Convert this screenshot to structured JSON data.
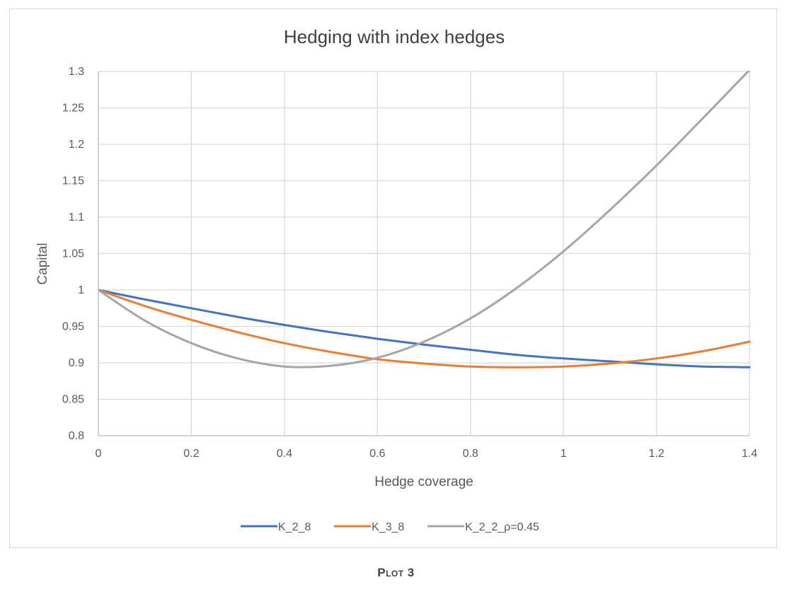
{
  "chart_data": {
    "type": "line",
    "title": "Hedging with index hedges",
    "xlabel": "Hedge coverage",
    "ylabel": "Capital",
    "xlim": [
      0,
      1.4
    ],
    "ylim": [
      0.8,
      1.3
    ],
    "x_ticks": [
      "0",
      "0.2",
      "0.4",
      "0.6",
      "0.8",
      "1",
      "1.2",
      "1.4"
    ],
    "y_ticks": [
      "0.8",
      "0.85",
      "0.9",
      "0.95",
      "1",
      "1.05",
      "1.1",
      "1.15",
      "1.2",
      "1.25",
      "1.3"
    ],
    "grid": true,
    "legend_position": "bottom",
    "x": [
      0,
      0.1,
      0.2,
      0.3,
      0.4,
      0.5,
      0.6,
      0.7,
      0.8,
      0.9,
      1.0,
      1.1,
      1.2,
      1.3,
      1.4
    ],
    "series": [
      {
        "name": "K_2_8",
        "color": "#4472c4",
        "values": [
          1.0,
          0.987,
          0.975,
          0.963,
          0.952,
          0.942,
          0.933,
          0.925,
          0.918,
          0.911,
          0.906,
          0.902,
          0.898,
          0.895,
          0.894
        ]
      },
      {
        "name": "K_3_8",
        "color": "#ed7d31",
        "values": [
          1.0,
          0.978,
          0.959,
          0.942,
          0.927,
          0.915,
          0.905,
          0.899,
          0.895,
          0.894,
          0.895,
          0.899,
          0.906,
          0.916,
          0.929
        ]
      },
      {
        "name": "K_2_2_ρ=0.45",
        "color": "#a5a5a5",
        "values": [
          1.0,
          0.958,
          0.927,
          0.906,
          0.895,
          0.896,
          0.907,
          0.929,
          0.961,
          1.003,
          1.053,
          1.11,
          1.171,
          1.236,
          1.302
        ]
      }
    ]
  },
  "caption": "Plot 3"
}
